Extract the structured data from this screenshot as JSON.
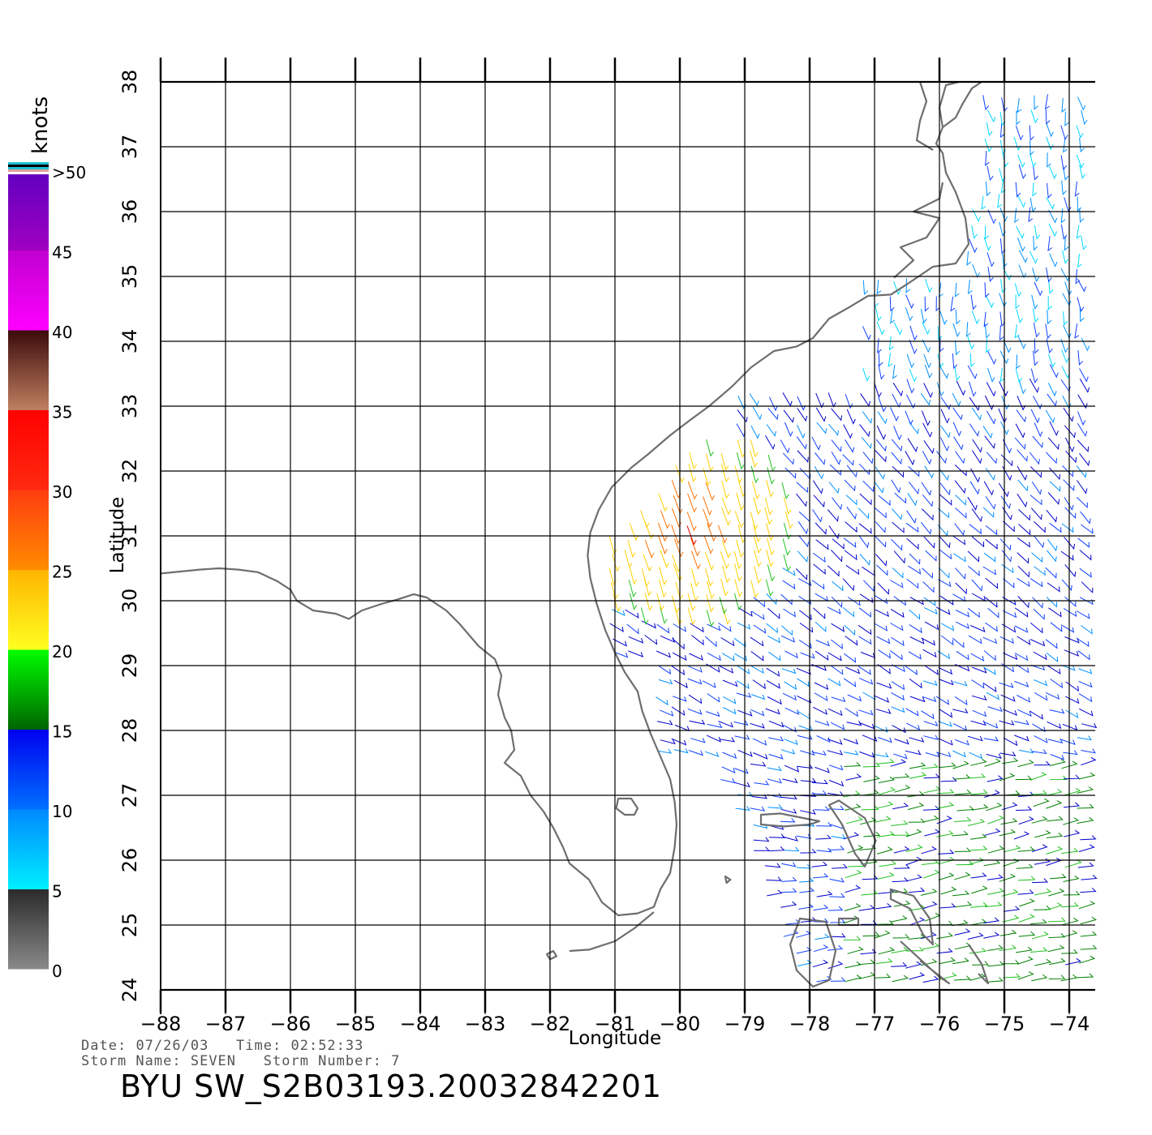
{
  "map": {
    "lon_range": [
      -88,
      -74
    ],
    "lat_range": [
      24,
      38
    ],
    "lon_ticks": [
      "-88",
      "-87",
      "-86",
      "-85",
      "-84",
      "-83",
      "-82",
      "-81",
      "-80",
      "-79",
      "-78",
      "-77",
      "-76",
      "-75",
      "-74"
    ],
    "lat_ticks": [
      "24",
      "25",
      "26",
      "27",
      "28",
      "29",
      "30",
      "31",
      "32",
      "33",
      "34",
      "35",
      "36",
      "37",
      "38"
    ],
    "xlabel": "Longitude",
    "ylabel": "Latitude",
    "grid": true,
    "coastline_color": "#6e6e6e"
  },
  "legend": {
    "unit": "knots",
    "labels": [
      "0",
      "5",
      "10",
      "15",
      "20",
      "25",
      "30",
      "35",
      "40",
      "45",
      ">50"
    ],
    "placement": "left",
    "bands": [
      {
        "range": "0-5",
        "colors": [
          "#8a8a8a",
          "#2a2a2a"
        ]
      },
      {
        "range": "5-10",
        "colors": [
          "#00f0ff",
          "#0088ff"
        ]
      },
      {
        "range": "10-15",
        "colors": [
          "#0070ff",
          "#0000f0"
        ]
      },
      {
        "range": "15-20",
        "colors": [
          "#006400",
          "#00ff00"
        ]
      },
      {
        "range": "20-25",
        "colors": [
          "#ffff20",
          "#ffb400"
        ]
      },
      {
        "range": "25-30",
        "colors": [
          "#ff8c00",
          "#ff3c10"
        ]
      },
      {
        "range": "30-35",
        "colors": [
          "#ff2a10",
          "#ff0000"
        ]
      },
      {
        "range": "35-40",
        "colors": [
          "#c08060",
          "#3a0a0a"
        ]
      },
      {
        "range": "40-45",
        "colors": [
          "#ff00ff",
          "#c000d0"
        ]
      },
      {
        "range": "45-50",
        "colors": [
          "#a000c0",
          "#6000c0"
        ]
      }
    ]
  },
  "footer": {
    "date_label": "Date:",
    "date": "07/26/03",
    "time_label": "Time:",
    "time": "02:52:33",
    "storm_name_label": "Storm Name:",
    "storm_name": "SEVEN",
    "storm_number_label": "Storm Number:",
    "storm_number": "7",
    "title": "BYU SW_S2B03193.20032842201"
  }
}
